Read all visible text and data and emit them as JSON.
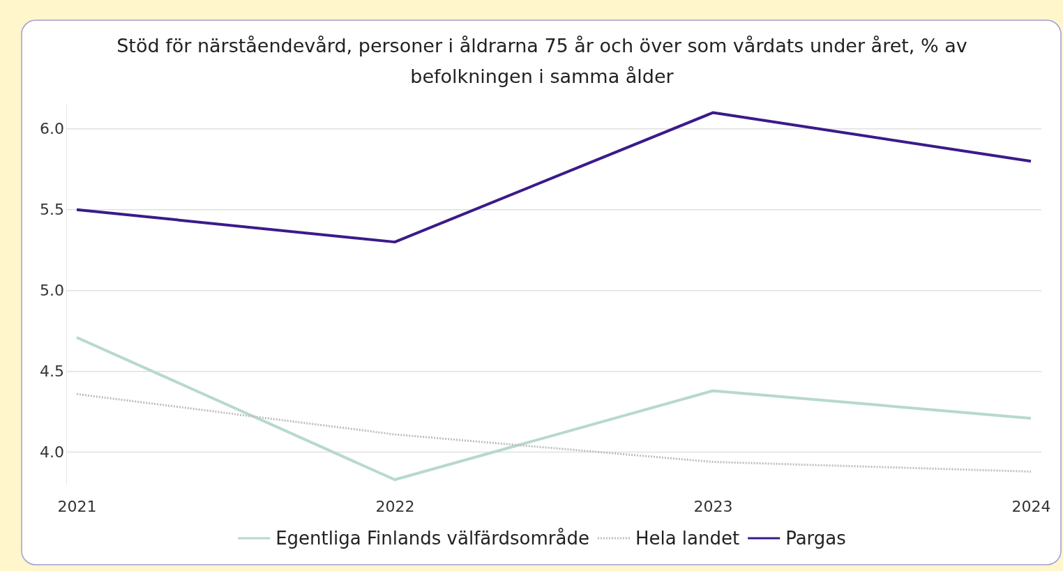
{
  "chart_data": {
    "type": "line",
    "title": "Stöd för närståendevård, personer i åldrarna 75 år och över som vårdats under året, % av befolkningen i samma ålder",
    "categories": [
      "2021",
      "2022",
      "2023",
      "2024"
    ],
    "series": [
      {
        "name": "Egentliga Finlands välfärdsområde",
        "color": "#b7d8d0",
        "values": [
          4.71,
          3.83,
          4.38,
          4.21
        ],
        "line_style": "solid"
      },
      {
        "name": "Hela landet",
        "color": "#bdbdbd",
        "values": [
          4.36,
          4.11,
          3.94,
          3.88
        ],
        "line_style": "dotted"
      },
      {
        "name": "Pargas",
        "color": "#3b1a8a",
        "values": [
          5.5,
          5.3,
          6.1,
          5.8
        ],
        "line_style": "solid"
      }
    ],
    "ylim": [
      3.8,
      6.15
    ],
    "yticks": [
      {
        "value": 4,
        "label": "4.0"
      },
      {
        "value": 4.5,
        "label": "4.5"
      },
      {
        "value": 5,
        "label": "5.0"
      },
      {
        "value": 5.5,
        "label": "5.5"
      },
      {
        "value": 6,
        "label": "6.0"
      }
    ],
    "grid": "y",
    "legend": "bottom",
    "marker": "none"
  }
}
